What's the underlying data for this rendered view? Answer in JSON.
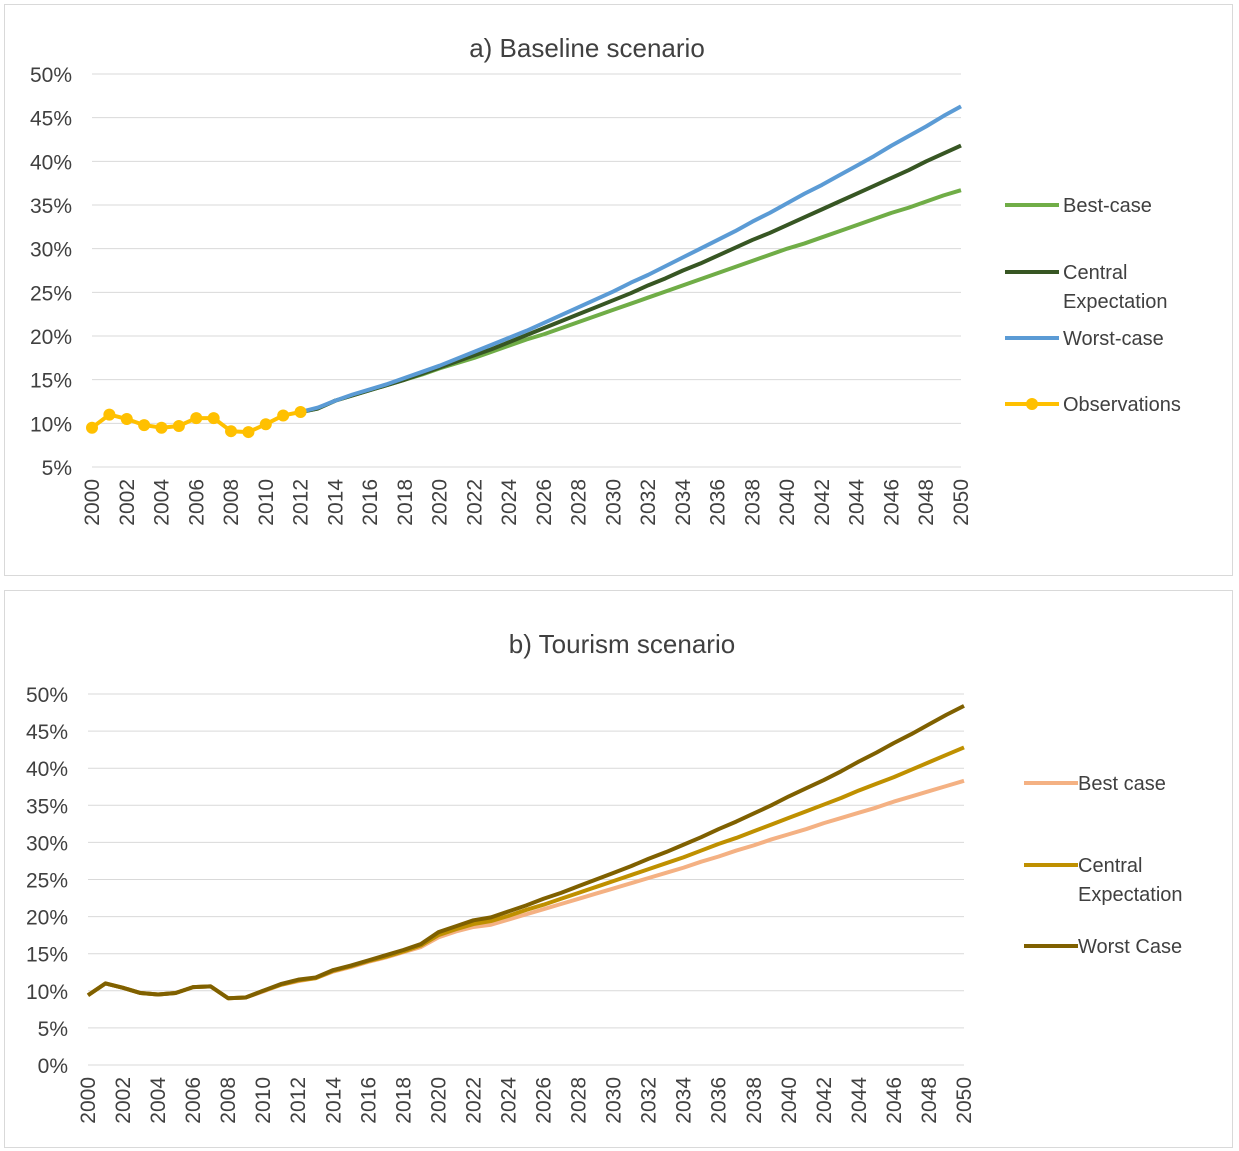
{
  "chart_data": [
    {
      "type": "line",
      "title": "a) Baseline scenario",
      "xlabel": "",
      "ylabel": "",
      "ylim": [
        0.05,
        0.5
      ],
      "yticks": [
        "50%",
        "45%",
        "40%",
        "35%",
        "30%",
        "25%",
        "20%",
        "15%",
        "10%",
        "5%"
      ],
      "xticks": [
        "2000",
        "2002",
        "2004",
        "2006",
        "2008",
        "2010",
        "2012",
        "2014",
        "2016",
        "2018",
        "2020",
        "2022",
        "2024",
        "2026",
        "2028",
        "2030",
        "2032",
        "2034",
        "2036",
        "2038",
        "2040",
        "2042",
        "2044",
        "2046",
        "2048",
        "2050"
      ],
      "grid": true,
      "legend_position": "right",
      "series": [
        {
          "name": "Best-case",
          "color": "#70ad47",
          "start": 2012,
          "values": [
            0.113,
            0.117,
            0.126,
            0.132,
            0.138,
            0.144,
            0.15,
            0.156,
            0.163,
            0.169,
            0.175,
            0.182,
            0.189,
            0.196,
            0.202,
            0.209,
            0.216,
            0.223,
            0.23,
            0.237,
            0.244,
            0.251,
            0.258,
            0.265,
            0.272,
            0.279,
            0.286,
            0.293,
            0.3,
            0.306,
            0.313,
            0.32,
            0.327,
            0.334,
            0.341,
            0.347,
            0.354,
            0.361,
            0.367
          ]
        },
        {
          "name": "Central Expectation",
          "color": "#375623",
          "start": 2012,
          "values": [
            0.113,
            0.117,
            0.126,
            0.132,
            0.138,
            0.144,
            0.15,
            0.157,
            0.164,
            0.171,
            0.178,
            0.185,
            0.193,
            0.201,
            0.209,
            0.217,
            0.225,
            0.233,
            0.241,
            0.249,
            0.258,
            0.266,
            0.275,
            0.283,
            0.292,
            0.301,
            0.31,
            0.318,
            0.327,
            0.336,
            0.345,
            0.354,
            0.363,
            0.372,
            0.381,
            0.39,
            0.4,
            0.409,
            0.418
          ]
        },
        {
          "name": "Worst-case",
          "color": "#5b9bd5",
          "start": 2012,
          "values": [
            0.113,
            0.118,
            0.126,
            0.133,
            0.139,
            0.145,
            0.152,
            0.159,
            0.166,
            0.174,
            0.182,
            0.19,
            0.198,
            0.206,
            0.215,
            0.224,
            0.233,
            0.242,
            0.251,
            0.261,
            0.27,
            0.28,
            0.29,
            0.3,
            0.31,
            0.32,
            0.331,
            0.341,
            0.352,
            0.363,
            0.373,
            0.384,
            0.395,
            0.406,
            0.418,
            0.429,
            0.44,
            0.452,
            0.463
          ]
        },
        {
          "name": "Observations",
          "color": "#ffc000",
          "start": 2000,
          "markers": true,
          "values": [
            0.095,
            0.11,
            0.105,
            0.098,
            0.095,
            0.097,
            0.106,
            0.106,
            0.091,
            0.09,
            0.099,
            0.109,
            0.113
          ]
        }
      ]
    },
    {
      "type": "line",
      "title": "b) Tourism scenario",
      "xlabel": "",
      "ylabel": "",
      "ylim": [
        0,
        0.5
      ],
      "yticks": [
        "50%",
        "45%",
        "40%",
        "35%",
        "30%",
        "25%",
        "20%",
        "15%",
        "10%",
        "5%",
        "0%"
      ],
      "xticks": [
        "2000",
        "2002",
        "2004",
        "2006",
        "2008",
        "2010",
        "2012",
        "2014",
        "2016",
        "2018",
        "2020",
        "2022",
        "2024",
        "2026",
        "2028",
        "2030",
        "2032",
        "2034",
        "2036",
        "2038",
        "2040",
        "2042",
        "2044",
        "2046",
        "2048",
        "2050"
      ],
      "grid": true,
      "legend_position": "right",
      "series": [
        {
          "name": "Best case",
          "color": "#f4b183",
          "start": 2000,
          "values": [
            0.094,
            0.11,
            0.104,
            0.097,
            0.095,
            0.097,
            0.105,
            0.106,
            0.09,
            0.091,
            0.099,
            0.108,
            0.113,
            0.117,
            0.126,
            0.132,
            0.139,
            0.145,
            0.152,
            0.159,
            0.172,
            0.18,
            0.186,
            0.189,
            0.196,
            0.203,
            0.21,
            0.217,
            0.224,
            0.231,
            0.238,
            0.245,
            0.252,
            0.259,
            0.266,
            0.274,
            0.281,
            0.289,
            0.296,
            0.304,
            0.311,
            0.318,
            0.326,
            0.333,
            0.34,
            0.347,
            0.355,
            0.362,
            0.369,
            0.376,
            0.383
          ]
        },
        {
          "name": "Central Expectation",
          "color": "#bf9000",
          "start": 2000,
          "values": [
            0.094,
            0.11,
            0.104,
            0.097,
            0.095,
            0.097,
            0.105,
            0.106,
            0.09,
            0.091,
            0.1,
            0.108,
            0.114,
            0.117,
            0.127,
            0.133,
            0.14,
            0.146,
            0.153,
            0.161,
            0.175,
            0.183,
            0.19,
            0.194,
            0.201,
            0.209,
            0.216,
            0.224,
            0.232,
            0.24,
            0.248,
            0.256,
            0.264,
            0.272,
            0.28,
            0.289,
            0.298,
            0.306,
            0.315,
            0.324,
            0.333,
            0.342,
            0.351,
            0.36,
            0.37,
            0.379,
            0.388,
            0.398,
            0.408,
            0.418,
            0.428
          ]
        },
        {
          "name": "Worst Case",
          "color": "#7f6000",
          "start": 2000,
          "values": [
            0.094,
            0.11,
            0.104,
            0.097,
            0.095,
            0.097,
            0.105,
            0.106,
            0.09,
            0.091,
            0.1,
            0.109,
            0.115,
            0.118,
            0.128,
            0.134,
            0.141,
            0.148,
            0.155,
            0.163,
            0.179,
            0.187,
            0.195,
            0.199,
            0.207,
            0.215,
            0.224,
            0.232,
            0.241,
            0.25,
            0.259,
            0.268,
            0.278,
            0.287,
            0.297,
            0.307,
            0.318,
            0.328,
            0.339,
            0.35,
            0.362,
            0.373,
            0.384,
            0.396,
            0.409,
            0.421,
            0.434,
            0.446,
            0.459,
            0.472,
            0.484
          ]
        }
      ]
    }
  ]
}
